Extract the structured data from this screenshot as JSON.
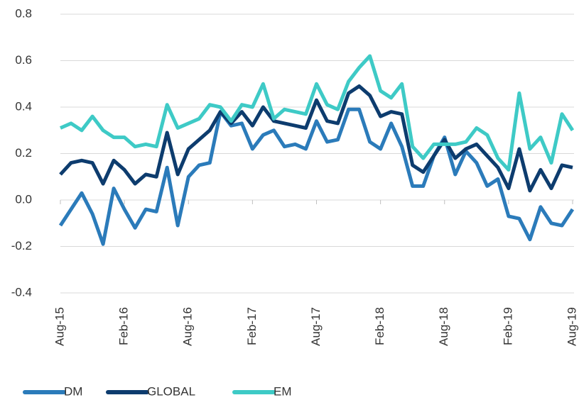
{
  "chart_data": {
    "type": "line",
    "categories": [
      "Aug-15",
      null,
      null,
      null,
      null,
      null,
      "Feb-16",
      null,
      null,
      null,
      null,
      null,
      "Aug-16",
      null,
      null,
      null,
      null,
      null,
      "Feb-17",
      null,
      null,
      null,
      null,
      null,
      "Aug-17",
      null,
      null,
      null,
      null,
      null,
      "Feb-18",
      null,
      null,
      null,
      null,
      null,
      "Aug-18",
      null,
      null,
      null,
      null,
      null,
      "Feb-19",
      null,
      null,
      null,
      null,
      null,
      "Aug-19"
    ],
    "series": [
      {
        "name": "DM",
        "color": "#2b7bba",
        "values": [
          -0.11,
          -0.04,
          0.03,
          -0.06,
          -0.19,
          0.05,
          -0.04,
          -0.12,
          -0.04,
          -0.05,
          0.14,
          -0.11,
          0.1,
          0.15,
          0.16,
          0.38,
          0.32,
          0.33,
          0.22,
          0.28,
          0.3,
          0.23,
          0.24,
          0.22,
          0.34,
          0.25,
          0.26,
          0.39,
          0.39,
          0.25,
          0.22,
          0.33,
          0.23,
          0.06,
          0.06,
          0.19,
          0.27,
          0.11,
          0.21,
          0.16,
          0.06,
          0.09,
          -0.07,
          -0.08,
          -0.17,
          -0.03,
          -0.1,
          -0.11,
          -0.04
        ]
      },
      {
        "name": "GLOBAL",
        "color": "#0d3c6e",
        "values": [
          0.11,
          0.16,
          0.17,
          0.16,
          0.07,
          0.17,
          0.13,
          0.07,
          0.11,
          0.1,
          0.29,
          0.11,
          0.22,
          0.26,
          0.3,
          0.38,
          0.33,
          0.38,
          0.32,
          0.4,
          0.34,
          0.33,
          0.32,
          0.31,
          0.43,
          0.34,
          0.33,
          0.46,
          0.49,
          0.45,
          0.36,
          0.38,
          0.37,
          0.15,
          0.12,
          0.19,
          0.26,
          0.18,
          0.22,
          0.24,
          0.19,
          0.14,
          0.05,
          0.22,
          0.04,
          0.13,
          0.05,
          0.15,
          0.14
        ]
      },
      {
        "name": "EM",
        "color": "#3ecac6",
        "values": [
          0.31,
          0.33,
          0.3,
          0.36,
          0.3,
          0.27,
          0.27,
          0.23,
          0.24,
          0.23,
          0.41,
          0.31,
          0.33,
          0.35,
          0.41,
          0.4,
          0.34,
          0.41,
          0.4,
          0.5,
          0.35,
          0.39,
          0.38,
          0.37,
          0.5,
          0.41,
          0.39,
          0.51,
          0.57,
          0.62,
          0.47,
          0.44,
          0.5,
          0.23,
          0.18,
          0.24,
          0.24,
          0.24,
          0.25,
          0.31,
          0.28,
          0.18,
          0.13,
          0.46,
          0.22,
          0.27,
          0.16,
          0.37,
          0.3
        ]
      }
    ],
    "ylim": [
      -0.4,
      0.8
    ],
    "yticks": [
      {
        "value": -0.4,
        "label": "-0.4"
      },
      {
        "value": -0.2,
        "label": "-0.2"
      },
      {
        "value": 0,
        "label": "0.0"
      },
      {
        "value": 0.2,
        "label": "0.2"
      },
      {
        "value": 0.4,
        "label": "0.4"
      },
      {
        "value": 0.6,
        "label": "0.6"
      },
      {
        "value": 0.8,
        "label": "0.8"
      }
    ],
    "grid": true,
    "legend": "bottom"
  }
}
